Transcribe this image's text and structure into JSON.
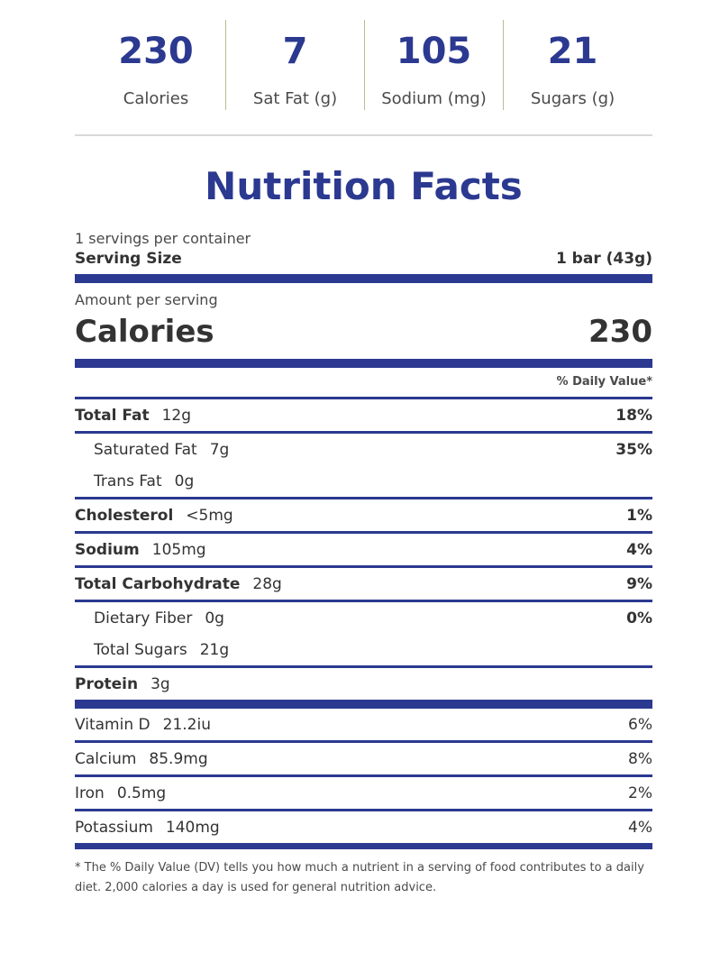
{
  "summary": [
    {
      "value": "230",
      "label": "Calories"
    },
    {
      "value": "7",
      "label": "Sat Fat (g)"
    },
    {
      "value": "105",
      "label": "Sodium (mg)"
    },
    {
      "value": "21",
      "label": "Sugars (g)"
    }
  ],
  "label": {
    "title": "Nutrition Facts",
    "servings_per_container": "1 servings per container",
    "serving_size_label": "Serving Size",
    "serving_size_value": "1 bar (43g)",
    "amount_per_serving": "Amount per serving",
    "calories_label": "Calories",
    "calories_value": "230",
    "daily_value_header": "% Daily Value*",
    "nutrients": [
      {
        "name": "Total Fat",
        "amount": "12g",
        "dv": "18%"
      },
      {
        "name": "Saturated Fat",
        "amount": "7g",
        "dv": "35%"
      },
      {
        "name": "Trans Fat",
        "amount": "0g",
        "dv": ""
      },
      {
        "name": "Cholesterol",
        "amount": "<5mg",
        "dv": "1%"
      },
      {
        "name": "Sodium",
        "amount": "105mg",
        "dv": "4%"
      },
      {
        "name": "Total Carbohydrate",
        "amount": "28g",
        "dv": "9%"
      },
      {
        "name": "Dietary Fiber",
        "amount": "0g",
        "dv": "0%"
      },
      {
        "name": "Total Sugars",
        "amount": "21g",
        "dv": ""
      },
      {
        "name": "Protein",
        "amount": "3g",
        "dv": ""
      }
    ],
    "vitamins": [
      {
        "name": "Vitamin D",
        "amount": "21.2iu",
        "dv": "6%"
      },
      {
        "name": "Calcium",
        "amount": "85.9mg",
        "dv": "8%"
      },
      {
        "name": "Iron",
        "amount": "0.5mg",
        "dv": "2%"
      },
      {
        "name": "Potassium",
        "amount": "140mg",
        "dv": "4%"
      }
    ],
    "footnote": "* The % Daily Value (DV) tells you how much a nutrient in a serving of food contributes to a daily diet. 2,000 calories a day is used for general nutrition advice."
  },
  "colors": {
    "accent": "#2b3990",
    "divider": "#b7be90"
  }
}
